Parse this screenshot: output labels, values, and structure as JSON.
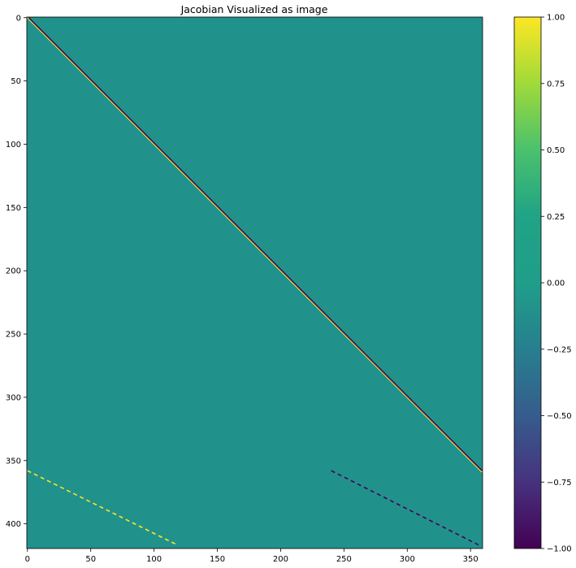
{
  "chart_data": {
    "type": "heatmap",
    "title": "Jacobian Visualized as image",
    "xlabel": "",
    "ylabel": "",
    "xlim": [
      -0.5,
      359.5
    ],
    "ylim": [
      419.5,
      -0.5
    ],
    "background_value": 0,
    "colormap": "viridis",
    "x_ticks": [
      0,
      50,
      100,
      150,
      200,
      250,
      300,
      350
    ],
    "y_ticks": [
      0,
      50,
      100,
      150,
      200,
      250,
      300,
      350,
      400
    ],
    "bands": [
      {
        "name": "main-diagonal-positive",
        "value": 1,
        "x_start": 0,
        "x_end": 359,
        "y_start": 0,
        "y_end": 359
      },
      {
        "name": "main-diagonal-negative",
        "value": -1,
        "x_start": 1,
        "x_end": 359,
        "y_start": 0,
        "y_end": 358
      },
      {
        "name": "lower-left-positive",
        "value": 1,
        "x_start": 0,
        "x_end": 117,
        "y_start": 358,
        "y_end": 416,
        "dashed": true
      },
      {
        "name": "lower-right-negative",
        "value": -1,
        "x_start": 240,
        "x_end": 357,
        "y_start": 358,
        "y_end": 417,
        "dashed": true
      }
    ],
    "colorbar": {
      "range": [
        -1.0,
        1.0
      ],
      "ticks": [
        -1.0,
        -0.75,
        -0.5,
        -0.25,
        0.0,
        0.25,
        0.5,
        0.75,
        1.0
      ],
      "tick_labels": [
        "−1.00",
        "−0.75",
        "−0.50",
        "−0.25",
        "0.00",
        "0.25",
        "0.50",
        "0.75",
        "1.00"
      ]
    }
  }
}
